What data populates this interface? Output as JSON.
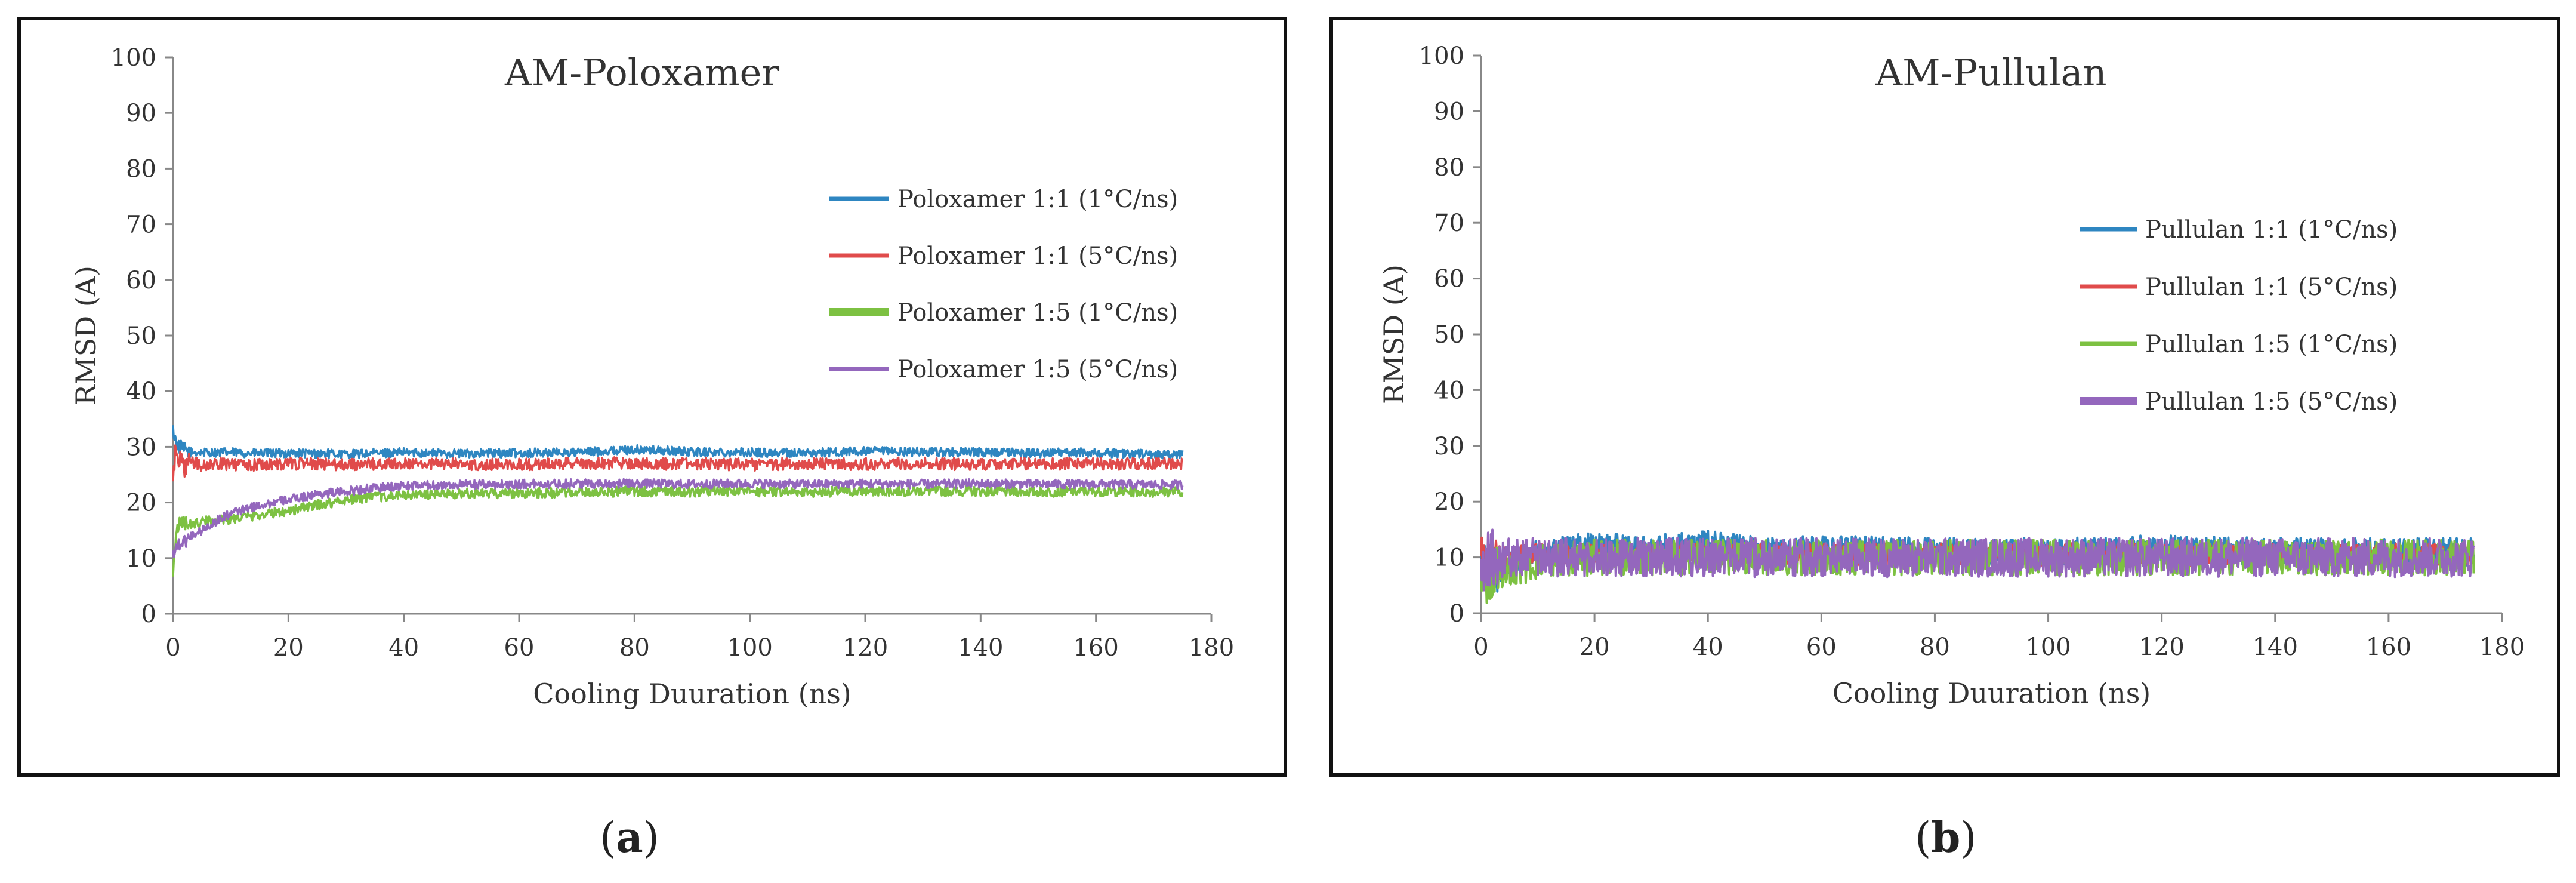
{
  "charts": {
    "a": {
      "title": "AM-Poloxamer",
      "panel_label": "a",
      "chart_data": {
        "type": "line",
        "title": "AM-Poloxamer",
        "xlabel": "Cooling Duuration (ns)",
        "ylabel": "RMSD (A)",
        "xlim": [
          0,
          180
        ],
        "ylim": [
          0,
          100
        ],
        "xticks": [
          0,
          20,
          40,
          60,
          80,
          100,
          120,
          140,
          160,
          180
        ],
        "yticks": [
          0,
          10,
          20,
          30,
          40,
          50,
          60,
          70,
          80,
          90,
          100
        ],
        "grid": false,
        "legend_position": "right",
        "series": [
          {
            "name": "Poloxamer 1:1 (1°C/ns)",
            "color": "#2E86C1",
            "x": [
              0,
              0.5,
              1,
              2,
              3,
              5,
              8,
              10,
              15,
              20,
              30,
              40,
              50,
              60,
              70,
              80,
              90,
              100,
              110,
              120,
              130,
              140,
              150,
              160,
              170,
              175
            ],
            "y": [
              33,
              31,
              30,
              29.5,
              29,
              29,
              29,
              29,
              28.8,
              28.9,
              28.7,
              29,
              28.8,
              28.9,
              29,
              29.5,
              29.1,
              29,
              28.9,
              29.2,
              29.1,
              29,
              28.9,
              29,
              28.6,
              28.6
            ],
            "noise": 0.8
          },
          {
            "name": "Poloxamer 1:1 (5°C/ns)",
            "color": "#E04B4B",
            "x": [
              0,
              0.5,
              1,
              2,
              3,
              5,
              8,
              10,
              15,
              20,
              30,
              40,
              50,
              60,
              70,
              80,
              90,
              100,
              110,
              120,
              130,
              140,
              150,
              160,
              170,
              175
            ],
            "y": [
              24,
              30,
              28,
              26,
              27.5,
              26.5,
              27,
              26.8,
              26.8,
              27,
              26.8,
              27,
              26.9,
              26.8,
              27.1,
              27,
              26.9,
              26.8,
              27,
              26.9,
              27,
              26.8,
              27,
              26.9,
              27,
              27
            ],
            "noise": 1.1
          },
          {
            "name": "Poloxamer 1:5 (1°C/ns)",
            "color": "#7DC142",
            "x": [
              0,
              0.5,
              1,
              2,
              3,
              5,
              8,
              10,
              15,
              20,
              25,
              30,
              35,
              40,
              50,
              60,
              70,
              80,
              90,
              100,
              110,
              120,
              130,
              140,
              150,
              160,
              170,
              175
            ],
            "y": [
              8,
              14,
              16,
              16.5,
              16,
              16.5,
              17,
              17,
              17.8,
              18.5,
              19.5,
              20.5,
              21,
              21.3,
              21.6,
              21.7,
              21.8,
              22,
              21.9,
              22,
              21.9,
              22,
              22.1,
              22,
              21.9,
              22,
              21.9,
              22
            ],
            "noise": 0.9
          },
          {
            "name": "Poloxamer 1:5 (5°C/ns)",
            "color": "#9467BD",
            "x": [
              0,
              0.5,
              1,
              2,
              3,
              5,
              8,
              10,
              15,
              20,
              25,
              30,
              35,
              40,
              50,
              60,
              70,
              80,
              90,
              100,
              110,
              120,
              130,
              140,
              150,
              160,
              170,
              175
            ],
            "y": [
              11,
              12,
              12.5,
              13,
              14,
              15,
              17,
              18,
              19.5,
              20.5,
              21.5,
              22,
              22.6,
              23,
              23.2,
              23.3,
              23.4,
              23.4,
              23.3,
              23.4,
              23.3,
              23.4,
              23.3,
              23.4,
              23.3,
              23.3,
              23.2,
              23.2
            ],
            "noise": 0.8
          }
        ]
      }
    },
    "b": {
      "title": "AM-Pullulan",
      "panel_label": "b",
      "chart_data": {
        "type": "line",
        "title": "AM-Pullulan",
        "xlabel": "Cooling Duuration (ns)",
        "ylabel": "RMSD (A)",
        "xlim": [
          0,
          180
        ],
        "ylim": [
          0,
          100
        ],
        "xticks": [
          0,
          20,
          40,
          60,
          80,
          100,
          120,
          140,
          160,
          180
        ],
        "yticks": [
          0,
          10,
          20,
          30,
          40,
          50,
          60,
          70,
          80,
          90,
          100
        ],
        "grid": false,
        "legend_position": "right",
        "series": [
          {
            "name": "Pullulan 1:1 (1°C/ns)",
            "color": "#2E86C1",
            "x": [
              0,
              1,
              2,
              5,
              10,
              20,
              30,
              40,
              50,
              60,
              80,
              100,
              120,
              140,
              160,
              175
            ],
            "y": [
              10,
              8,
              7,
              9,
              11,
              12,
              11.5,
              12.5,
              11,
              11.5,
              11,
              11,
              11.5,
              11,
              11,
              11
            ],
            "noise": 2.5
          },
          {
            "name": "Pullulan 1:1 (5°C/ns)",
            "color": "#E04B4B",
            "x": [
              0,
              1,
              2,
              5,
              10,
              20,
              40,
              60,
              80,
              100,
              120,
              140,
              160,
              175
            ],
            "y": [
              11,
              9,
              10,
              10,
              10.5,
              10.5,
              10.5,
              10.5,
              10.5,
              10.5,
              10.5,
              10.5,
              10.5,
              10.5
            ],
            "noise": 2.0
          },
          {
            "name": "Pullulan 1:5 (1°C/ns)",
            "color": "#7DC142",
            "x": [
              0,
              0.5,
              1,
              2,
              5,
              10,
              20,
              40,
              60,
              80,
              100,
              120,
              140,
              160,
              175
            ],
            "y": [
              3,
              4,
              6,
              7,
              8,
              9,
              10,
              10,
              10,
              10,
              10,
              10,
              10,
              10,
              10
            ],
            "noise": 3.2
          },
          {
            "name": "Pullulan 1:5 (5°C/ns)",
            "color": "#9467BD",
            "x": [
              0,
              1,
              5,
              10,
              20,
              40,
              60,
              80,
              100,
              120,
              140,
              160,
              175
            ],
            "y": [
              9,
              9.5,
              10,
              10,
              10,
              10,
              10,
              10,
              10,
              10,
              10,
              10,
              10
            ],
            "noise": 3.5
          }
        ]
      }
    }
  }
}
